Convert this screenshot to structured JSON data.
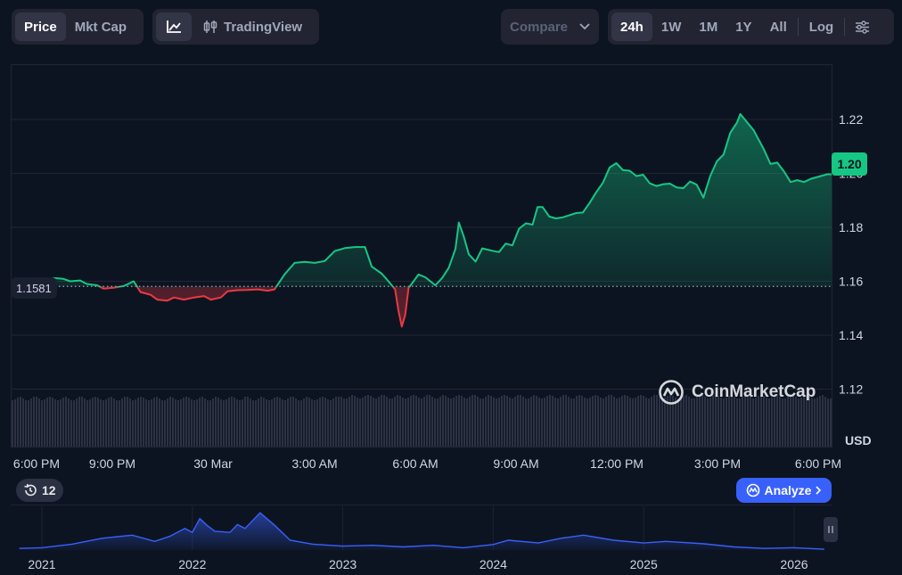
{
  "toolbar": {
    "mode_tabs": [
      "Price",
      "Mkt Cap"
    ],
    "active_mode": "Price",
    "tradingview_label": "TradingView",
    "compare_label": "Compare",
    "range_tabs": [
      "24h",
      "1W",
      "1M",
      "1Y",
      "All"
    ],
    "active_range": "24h",
    "log_label": "Log"
  },
  "reference": {
    "label": "1.1581"
  },
  "current_badge": {
    "label": "1.20"
  },
  "watermark": "CoinMarketCap",
  "unit_label": "USD",
  "history_badge": "12",
  "analyze_label": "Analyze",
  "colors": {
    "up": "#16c784",
    "down": "#ea3943",
    "accent": "#3861fb",
    "navigator": "#3861fb"
  },
  "icons": [
    "line-chart-icon",
    "candlestick-icon",
    "chevron-down-icon",
    "settings-sliders-icon",
    "history-icon",
    "coinmarketcap-logo-icon",
    "chevron-right-icon",
    "pause-icon"
  ],
  "chart_data": [
    {
      "type": "line",
      "y_axis": {
        "ticks": [
          "1.22",
          "1.20",
          "1.18",
          "1.16",
          "1.14",
          "1.12"
        ],
        "values": [
          1.22,
          1.2,
          1.18,
          1.16,
          1.14,
          1.12
        ],
        "ylim": [
          1.12,
          1.24
        ],
        "unit": "USD"
      },
      "x_axis": {
        "ticks": [
          "6:00 PM",
          "9:00 PM",
          "30 Mar",
          "3:00 AM",
          "6:00 AM",
          "9:00 AM",
          "12:00 PM",
          "3:00 PM",
          "6:00 PM"
        ],
        "tick_hours": [
          0,
          3,
          6,
          9,
          12,
          15,
          18,
          21,
          24
        ]
      },
      "baseline": 1.1581,
      "grid": true,
      "points_hours_value": [
        [
          0,
          1.16
        ],
        [
          0.2,
          1.159
        ],
        [
          0.5,
          1.1612
        ],
        [
          0.8,
          1.1609
        ],
        [
          1.0,
          1.16
        ],
        [
          1.3,
          1.1603
        ],
        [
          1.5,
          1.159
        ],
        [
          1.8,
          1.1585
        ],
        [
          2.0,
          1.1573
        ],
        [
          2.3,
          1.1576
        ],
        [
          2.6,
          1.1582
        ],
        [
          2.9,
          1.16
        ],
        [
          3.1,
          1.156
        ],
        [
          3.4,
          1.155
        ],
        [
          3.6,
          1.1532
        ],
        [
          3.9,
          1.1528
        ],
        [
          4.1,
          1.154
        ],
        [
          4.4,
          1.1532
        ],
        [
          4.7,
          1.154
        ],
        [
          5.0,
          1.1545
        ],
        [
          5.2,
          1.1532
        ],
        [
          5.5,
          1.154
        ],
        [
          5.7,
          1.1563
        ],
        [
          6.0,
          1.1567
        ],
        [
          6.3,
          1.1568
        ],
        [
          6.6,
          1.157
        ],
        [
          6.9,
          1.1565
        ],
        [
          7.1,
          1.157
        ],
        [
          7.4,
          1.1625
        ],
        [
          7.7,
          1.1668
        ],
        [
          8.0,
          1.1672
        ],
        [
          8.3,
          1.1668
        ],
        [
          8.6,
          1.1675
        ],
        [
          8.9,
          1.1712
        ],
        [
          9.2,
          1.1723
        ],
        [
          9.5,
          1.1727
        ],
        [
          9.8,
          1.1727
        ],
        [
          10.0,
          1.1655
        ],
        [
          10.3,
          1.1628
        ],
        [
          10.5,
          1.16
        ],
        [
          10.7,
          1.157
        ],
        [
          10.8,
          1.149
        ],
        [
          10.9,
          1.1432
        ],
        [
          11.0,
          1.1475
        ],
        [
          11.1,
          1.1575
        ],
        [
          11.4,
          1.1625
        ],
        [
          11.6,
          1.1615
        ],
        [
          11.9,
          1.1585
        ],
        [
          12.1,
          1.1612
        ],
        [
          12.3,
          1.165
        ],
        [
          12.5,
          1.172
        ],
        [
          12.6,
          1.1818
        ],
        [
          12.75,
          1.1765
        ],
        [
          12.9,
          1.17
        ],
        [
          13.1,
          1.1673
        ],
        [
          13.3,
          1.1722
        ],
        [
          13.6,
          1.1713
        ],
        [
          13.8,
          1.1708
        ],
        [
          14.0,
          1.174
        ],
        [
          14.2,
          1.1733
        ],
        [
          14.4,
          1.1795
        ],
        [
          14.6,
          1.1815
        ],
        [
          14.8,
          1.181
        ],
        [
          14.95,
          1.1875
        ],
        [
          15.1,
          1.1875
        ],
        [
          15.3,
          1.184
        ],
        [
          15.5,
          1.1833
        ],
        [
          15.7,
          1.1837
        ],
        [
          15.9,
          1.1845
        ],
        [
          16.1,
          1.1853
        ],
        [
          16.3,
          1.1855
        ],
        [
          16.5,
          1.189
        ],
        [
          16.7,
          1.193
        ],
        [
          16.9,
          1.1965
        ],
        [
          17.1,
          1.2022
        ],
        [
          17.3,
          1.2038
        ],
        [
          17.5,
          1.2012
        ],
        [
          17.7,
          1.201
        ],
        [
          17.9,
          1.199
        ],
        [
          18.1,
          1.1995
        ],
        [
          18.3,
          1.1963
        ],
        [
          18.5,
          1.1953
        ],
        [
          18.7,
          1.196
        ],
        [
          18.9,
          1.1962
        ],
        [
          19.1,
          1.1948
        ],
        [
          19.3,
          1.1945
        ],
        [
          19.5,
          1.197
        ],
        [
          19.7,
          1.1958
        ],
        [
          19.9,
          1.191
        ],
        [
          20.1,
          1.199
        ],
        [
          20.3,
          1.2045
        ],
        [
          20.5,
          1.207
        ],
        [
          20.7,
          1.215
        ],
        [
          20.9,
          1.2188
        ],
        [
          21.0,
          1.222
        ],
        [
          21.2,
          1.219
        ],
        [
          21.4,
          1.216
        ],
        [
          21.7,
          1.209
        ],
        [
          21.9,
          1.2035
        ],
        [
          22.1,
          1.204
        ],
        [
          22.3,
          1.2008
        ],
        [
          22.5,
          1.1968
        ],
        [
          22.7,
          1.1975
        ],
        [
          22.9,
          1.1968
        ],
        [
          23.1,
          1.198
        ],
        [
          23.4,
          1.199
        ],
        [
          23.6,
          1.1997
        ],
        [
          23.9,
          1.1995
        ],
        [
          24.0,
          1.2
        ],
        [
          24.3,
          1.201
        ],
        [
          24.5,
          1.2012
        ],
        [
          24.8,
          1.2008
        ],
        [
          25.0,
          1.203
        ],
        [
          25.3,
          1.2025
        ],
        [
          25.45,
          1.2035
        ],
        [
          25.6,
          1.203
        ]
      ],
      "volume_bars": "present (grey columns at bottom of plot)"
    },
    {
      "type": "area",
      "name": "navigator",
      "x_axis": {
        "ticks": [
          "2021",
          "2022",
          "2023",
          "2024",
          "2025",
          "2026"
        ],
        "values": [
          2021,
          2022,
          2023,
          2024,
          2025,
          2026
        ]
      },
      "points_year_relative": [
        [
          2020.85,
          0.04
        ],
        [
          2021.0,
          0.06
        ],
        [
          2021.2,
          0.15
        ],
        [
          2021.4,
          0.3
        ],
        [
          2021.6,
          0.38
        ],
        [
          2021.75,
          0.22
        ],
        [
          2021.85,
          0.35
        ],
        [
          2021.95,
          0.55
        ],
        [
          2022.0,
          0.45
        ],
        [
          2022.05,
          0.8
        ],
        [
          2022.1,
          0.62
        ],
        [
          2022.15,
          0.48
        ],
        [
          2022.25,
          0.45
        ],
        [
          2022.3,
          0.65
        ],
        [
          2022.35,
          0.55
        ],
        [
          2022.45,
          0.95
        ],
        [
          2022.55,
          0.62
        ],
        [
          2022.65,
          0.25
        ],
        [
          2022.8,
          0.15
        ],
        [
          2023.0,
          0.1
        ],
        [
          2023.2,
          0.12
        ],
        [
          2023.4,
          0.08
        ],
        [
          2023.6,
          0.12
        ],
        [
          2023.8,
          0.06
        ],
        [
          2024.0,
          0.14
        ],
        [
          2024.1,
          0.25
        ],
        [
          2024.3,
          0.18
        ],
        [
          2024.45,
          0.3
        ],
        [
          2024.6,
          0.38
        ],
        [
          2024.8,
          0.25
        ],
        [
          2025.0,
          0.18
        ],
        [
          2025.15,
          0.22
        ],
        [
          2025.4,
          0.16
        ],
        [
          2025.6,
          0.08
        ],
        [
          2025.8,
          0.04
        ],
        [
          2026.0,
          0.06
        ],
        [
          2026.2,
          0.02
        ]
      ]
    }
  ]
}
